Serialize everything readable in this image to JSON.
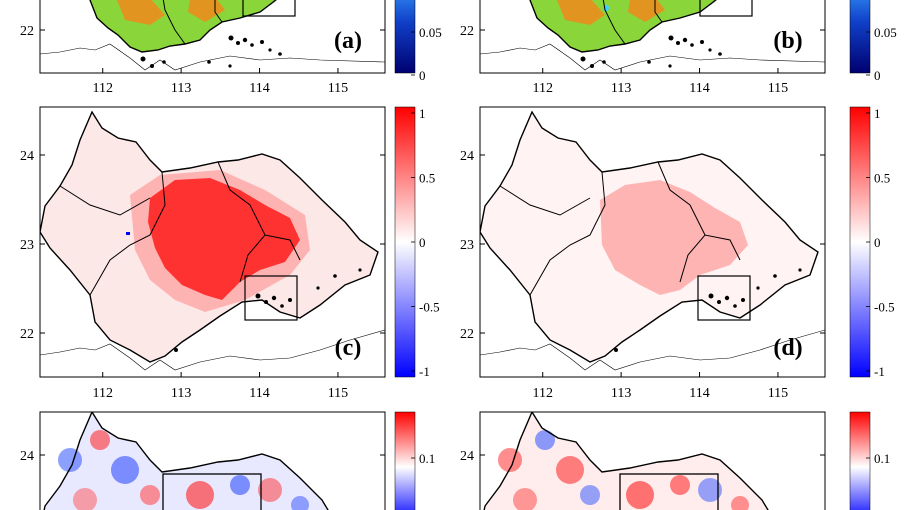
{
  "chart_data": {
    "type": "heatmap",
    "x_ticks": [
      "112",
      "113",
      "114",
      "115"
    ],
    "panels": [
      {
        "label": "(a)",
        "colormap": "terrain",
        "cbar_ticks": [
          "0.05",
          "0"
        ],
        "y_ticks": [
          "22"
        ],
        "show_x_ticks": true,
        "cropped": "top",
        "extent": [
          111.2,
          115.6,
          21.5,
          24.5
        ]
      },
      {
        "label": "(b)",
        "colormap": "terrain",
        "cbar_ticks": [
          "0.05",
          "0"
        ],
        "y_ticks": [
          "22"
        ],
        "show_x_ticks": true,
        "cropped": "top",
        "extent": [
          111.2,
          115.6,
          21.5,
          24.5
        ]
      },
      {
        "label": "(c)",
        "colormap": "diverging",
        "cbar_ticks": [
          "1",
          "0.5",
          "0",
          "-0.5",
          "-1"
        ],
        "cbar_range": [
          -1,
          1
        ],
        "y_ticks": [
          "24",
          "23",
          "22"
        ],
        "show_x_ticks": true,
        "cropped": "none",
        "extent": [
          111.2,
          115.6,
          21.5,
          24.5
        ]
      },
      {
        "label": "(d)",
        "colormap": "diverging",
        "cbar_ticks": [
          "1",
          "0.5",
          "0",
          "-0.5",
          "-1"
        ],
        "cbar_range": [
          -1,
          1
        ],
        "y_ticks": [
          "24",
          "23",
          "22"
        ],
        "show_x_ticks": true,
        "cropped": "none",
        "extent": [
          111.2,
          115.6,
          21.5,
          24.5
        ]
      },
      {
        "label": "",
        "colormap": "diverging",
        "cbar_ticks": [
          "0.1"
        ],
        "y_ticks": [
          "24"
        ],
        "show_x_ticks": false,
        "cropped": "bottom",
        "extent": [
          111.2,
          115.6,
          21.5,
          24.5
        ]
      },
      {
        "label": "",
        "colormap": "diverging",
        "cbar_ticks": [
          "0.1"
        ],
        "y_ticks": [
          "24"
        ],
        "show_x_ticks": false,
        "cropped": "bottom",
        "extent": [
          111.2,
          115.6,
          21.5,
          24.5
        ]
      }
    ]
  },
  "colors": {
    "red": "#ff0000",
    "blue": "#0000ff",
    "navy": "#000080",
    "sky": "#3aa0ff",
    "green": "#8ad63a",
    "orange": "#f08a1c"
  }
}
